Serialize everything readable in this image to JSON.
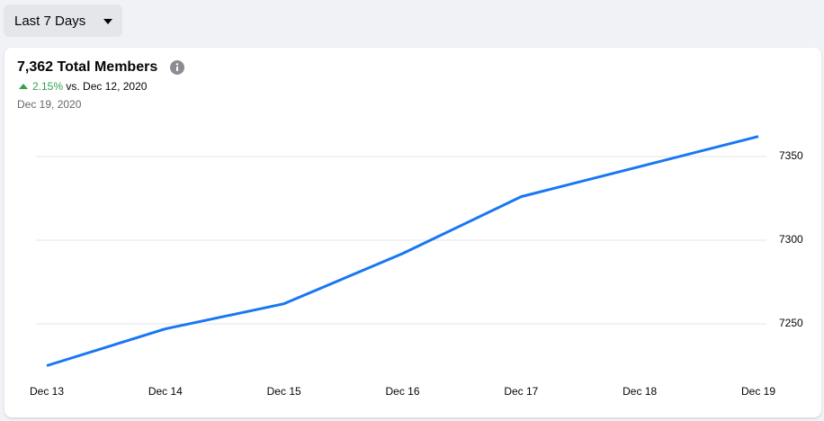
{
  "filter": {
    "label": "Last 7 Days"
  },
  "summary": {
    "title": "7,362 Total Members",
    "change": "2.15%",
    "comparison": "vs. Dec 12, 2020",
    "date": "Dec 19, 2020"
  },
  "chart_data": {
    "type": "line",
    "categories": [
      "Dec 13",
      "Dec 14",
      "Dec 15",
      "Dec 16",
      "Dec 17",
      "Dec 18",
      "Dec 19"
    ],
    "values": [
      7225,
      7247,
      7262,
      7292,
      7326,
      7344,
      7362
    ],
    "color": "#1877f2",
    "ylim": [
      7215,
      7370
    ],
    "yticks": [
      7250,
      7300,
      7350
    ],
    "grid": true
  }
}
